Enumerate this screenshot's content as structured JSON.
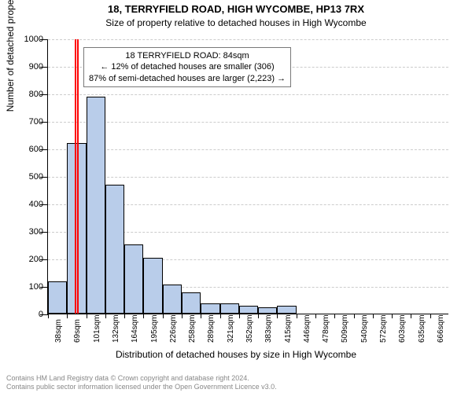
{
  "title": "18, TERRYFIELD ROAD, HIGH WYCOMBE, HP13 7RX",
  "subtitle": "Size of property relative to detached houses in High Wycombe",
  "chart": {
    "type": "histogram",
    "ylabel": "Number of detached properties",
    "xlabel": "Distribution of detached houses by size in High Wycombe",
    "ylim": [
      0,
      1000
    ],
    "ytick_step": 100,
    "bar_fill": "#b9cdea",
    "bar_stroke": "#000000",
    "grid_color": "#cccccc",
    "background": "#ffffff",
    "label_fontsize": 12,
    "tick_fontsize": 11,
    "xtick_fontsize": 10,
    "categories": [
      "38sqm",
      "69sqm",
      "101sqm",
      "132sqm",
      "164sqm",
      "195sqm",
      "226sqm",
      "258sqm",
      "289sqm",
      "321sqm",
      "352sqm",
      "383sqm",
      "415sqm",
      "446sqm",
      "478sqm",
      "509sqm",
      "540sqm",
      "572sqm",
      "603sqm",
      "635sqm",
      "666sqm"
    ],
    "values": [
      118,
      620,
      788,
      468,
      252,
      204,
      106,
      76,
      38,
      38,
      30,
      24,
      30,
      0,
      0,
      0,
      0,
      0,
      0,
      0,
      0
    ],
    "highlight_index": 1.45,
    "highlight_color": "#ff0000",
    "annotation": {
      "lines": [
        "18 TERRYFIELD ROAD: 84sqm",
        "← 12% of detached houses are smaller (306)",
        "87% of semi-detached houses are larger (2,223) →"
      ],
      "border_color": "#787878",
      "fontsize": 11
    }
  },
  "footer": {
    "line1": "Contains HM Land Registry data © Crown copyright and database right 2024.",
    "line2": "Contains public sector information licensed under the Open Government Licence v3.0.",
    "color": "#888888",
    "fontsize": 9
  }
}
